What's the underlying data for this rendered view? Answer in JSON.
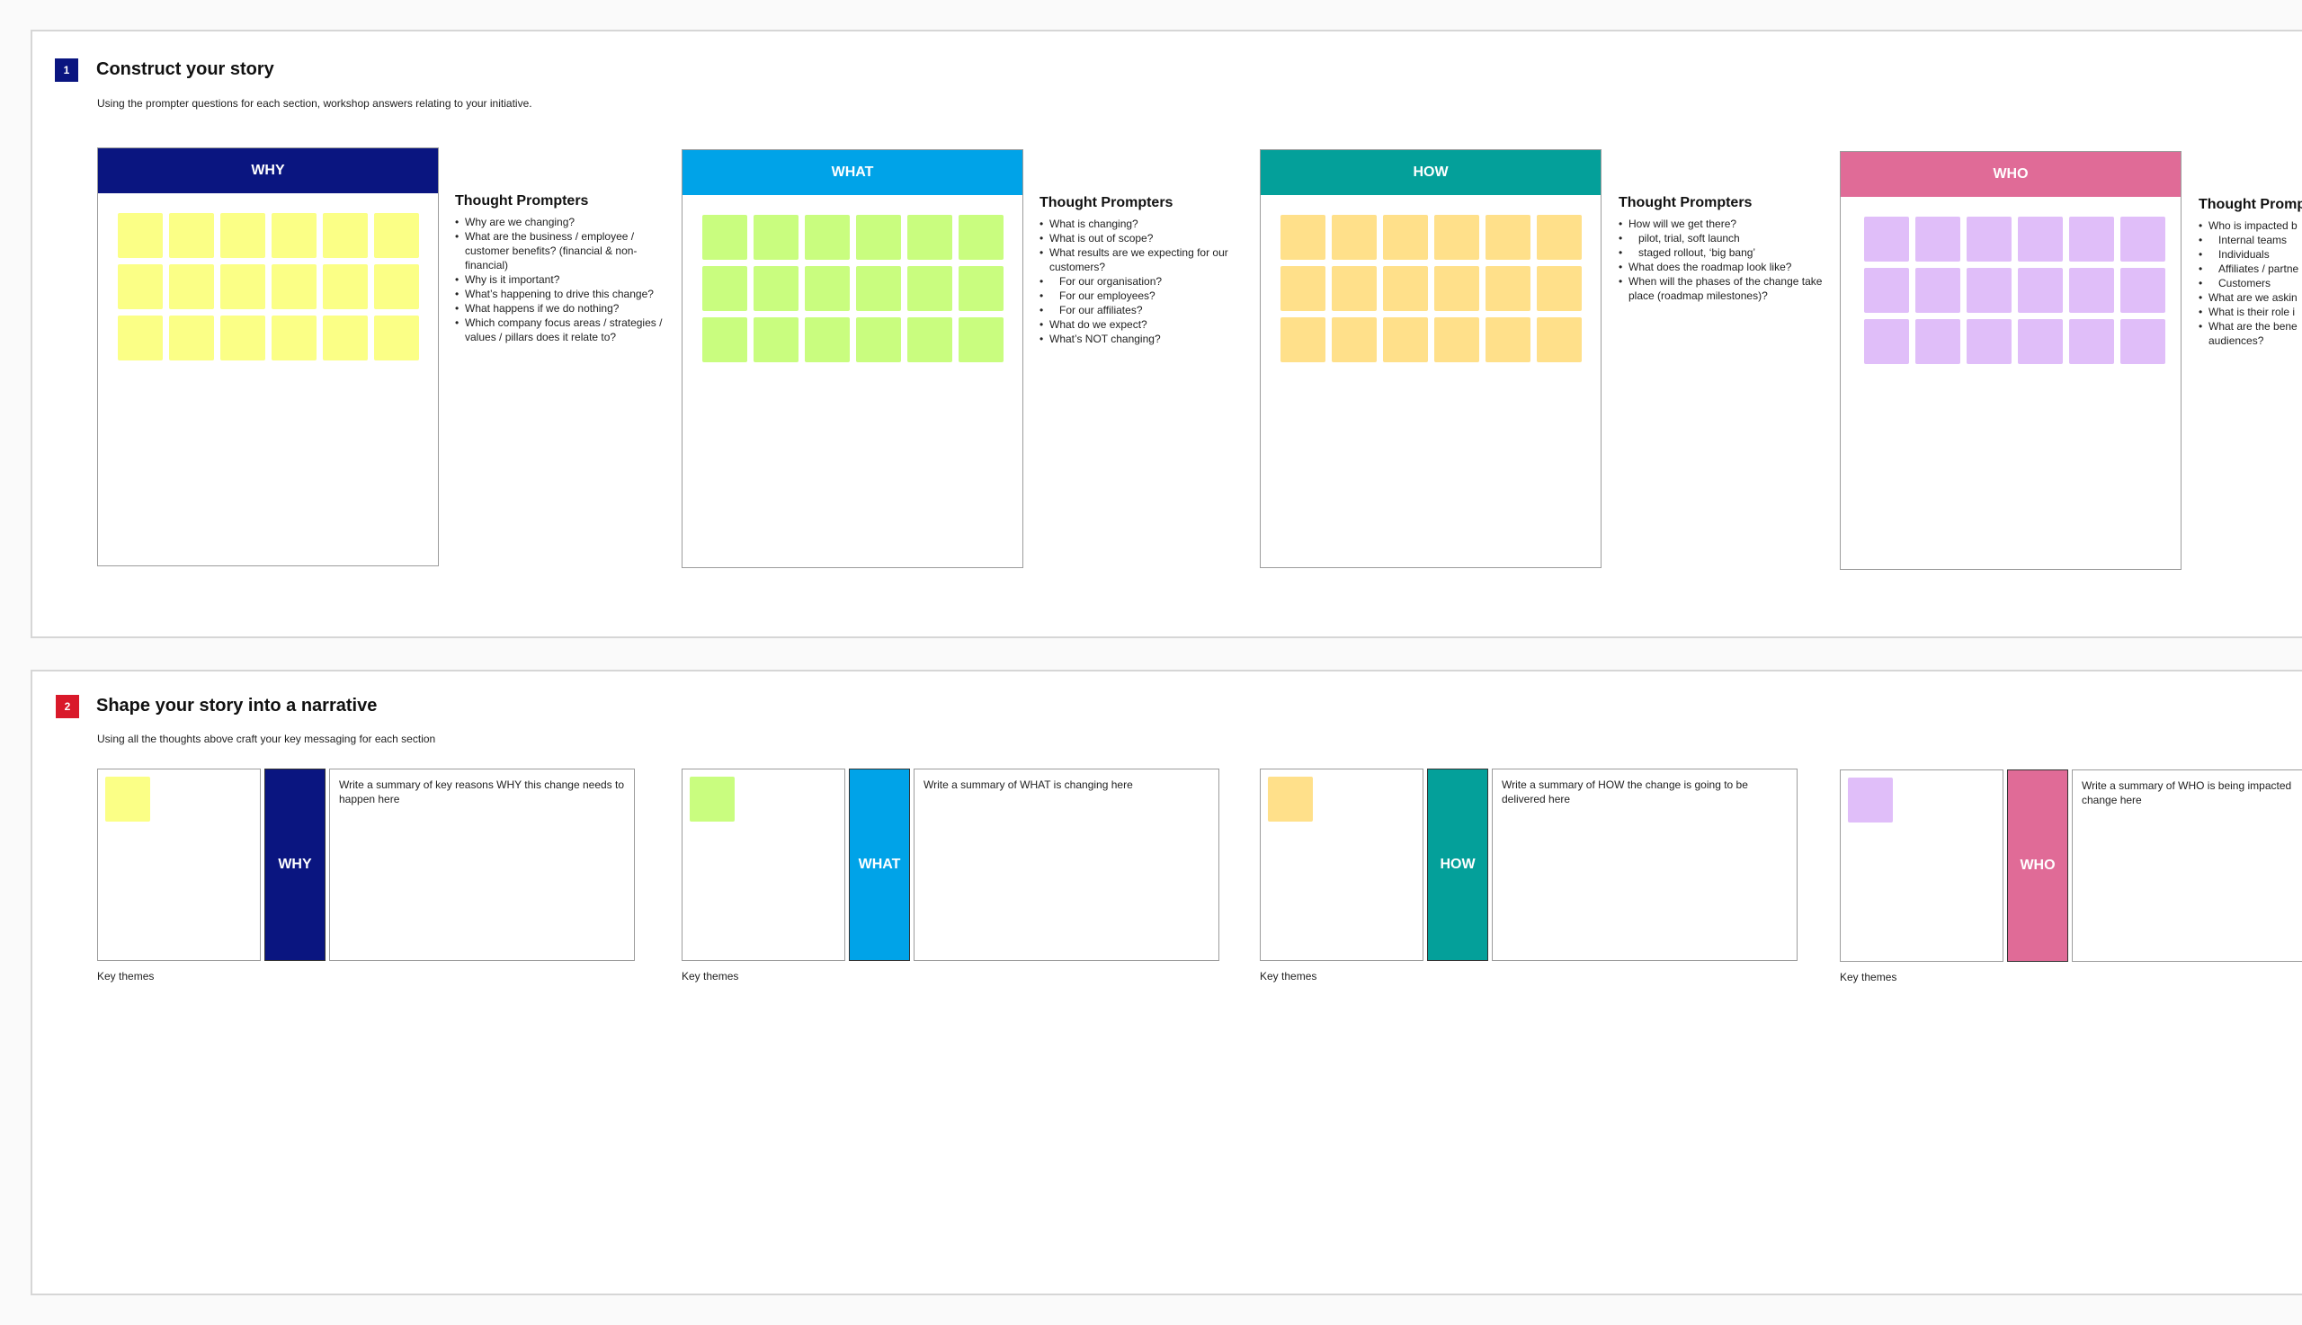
{
  "colors": {
    "navy": "#0a1580",
    "red": "#d9192a",
    "why_header": "#0a1580",
    "what_header": "#00a3e8",
    "how_header": "#04a09a",
    "who_header": "#e06b97",
    "why_sticky": "#fbff86",
    "what_sticky": "#c9fd7f",
    "how_sticky": "#ffe08a",
    "who_sticky": "#e0bef9"
  },
  "section1": {
    "number": "1",
    "title": "Construct your story",
    "description": "Using the prompter questions for each section, workshop answers relating to your initiative.",
    "cards": [
      {
        "header": "WHY",
        "prompters_title": "Thought Prompters",
        "prompters": [
          "Why are we changing?",
          "What are the business / employee / customer benefits?  (financial & non-financial)",
          "Why is it important?",
          "What’s happening to drive this change?",
          "What happens if we do nothing?",
          "Which company focus areas / strategies / values / pillars does it relate to?"
        ]
      },
      {
        "header": "WHAT",
        "prompters_title": "Thought Prompters",
        "prompters": [
          "What is changing?",
          "What is out of scope?",
          "What results are we expecting for our customers?",
          "For our organisation?",
          "For our employees?",
          "For our affiliates?",
          "What do we expect?",
          "What’s NOT changing?"
        ]
      },
      {
        "header": "HOW",
        "prompters_title": "Thought Prompters",
        "prompters": [
          "How will we get there?",
          "pilot, trial, soft launch",
          "staged rollout, ‘big bang’",
          "What does the roadmap look like?",
          "When will the phases of the change take place (roadmap milestones)?"
        ]
      },
      {
        "header": "WHO",
        "prompters_title": "Thought Promp",
        "prompters": [
          "Who is impacted b",
          "Internal teams",
          "Individuals",
          "Affiliates / partne",
          "Customers",
          "What are we askin",
          "What is their role i",
          "What are the bene audiences?"
        ]
      }
    ]
  },
  "section2": {
    "number": "2",
    "title": "Shape your story into a narrative",
    "description": "Using all the thoughts above craft your key messaging for each section",
    "rows": [
      {
        "label": "WHY",
        "summary": "Write a summary of key reasons WHY this change needs to happen here",
        "caption": "Key themes"
      },
      {
        "label": "WHAT",
        "summary": "Write a summary of WHAT is changing here",
        "caption": "Key themes"
      },
      {
        "label": "HOW",
        "summary": "Write a summary of HOW the change is going to be delivered here",
        "caption": "Key themes"
      },
      {
        "label": "WHO",
        "summary": "Write a summary of WHO is being impacted change here",
        "caption": "Key themes"
      }
    ]
  }
}
